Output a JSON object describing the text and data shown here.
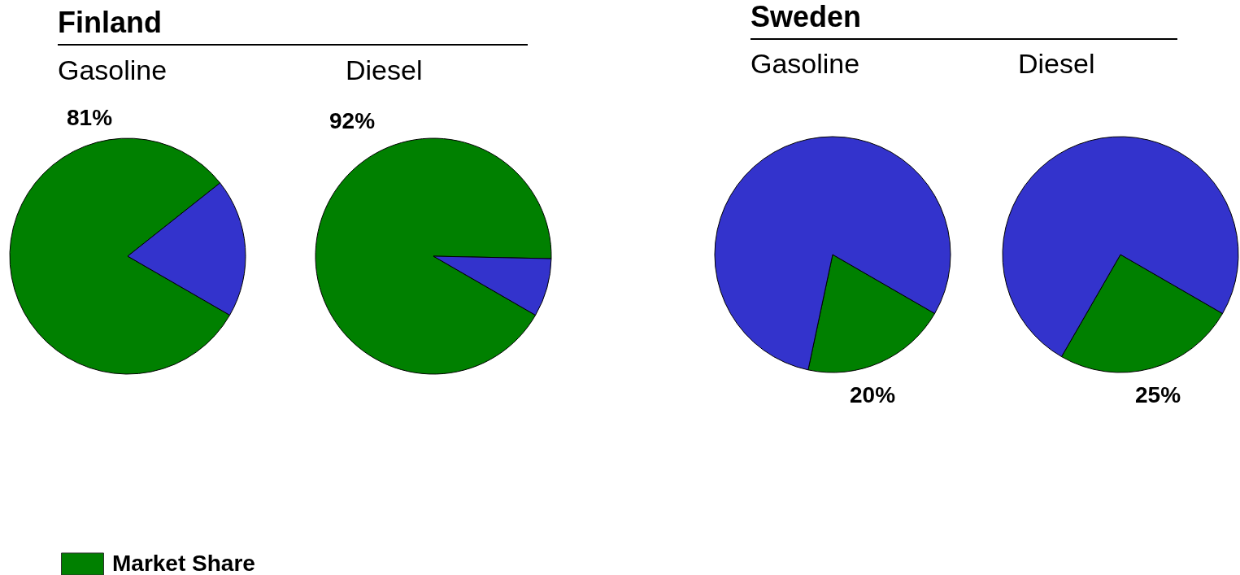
{
  "chart_data": [
    {
      "type": "pie",
      "title": "Finland",
      "subtitle": "Gasoline",
      "categories": [
        "Market Share",
        null
      ],
      "values": [
        81,
        19
      ],
      "colors": [
        "#008000",
        "#3333cc"
      ],
      "value_labels": [
        "81%",
        null
      ],
      "legend": "bottom"
    },
    {
      "type": "pie",
      "subtitle": "Diesel",
      "categories": [
        null,
        null
      ],
      "values": [
        92,
        8
      ],
      "colors": [
        "#008000",
        "#3333cc"
      ],
      "value_labels": [
        "92%",
        null
      ]
    },
    {
      "type": "pie",
      "title": "Sweden",
      "subtitle": "Gasoline",
      "categories": [
        null,
        null
      ],
      "values": [
        20,
        80
      ],
      "colors": [
        "#008000",
        "#3333cc"
      ],
      "value_labels": [
        "20%",
        null
      ]
    },
    {
      "type": "pie",
      "subtitle": "Diesel",
      "categories": [
        null,
        null
      ],
      "values": [
        25,
        75
      ],
      "colors": [
        "#008000",
        "#3333cc"
      ],
      "value_labels": [
        "25%",
        null
      ]
    }
  ]
}
